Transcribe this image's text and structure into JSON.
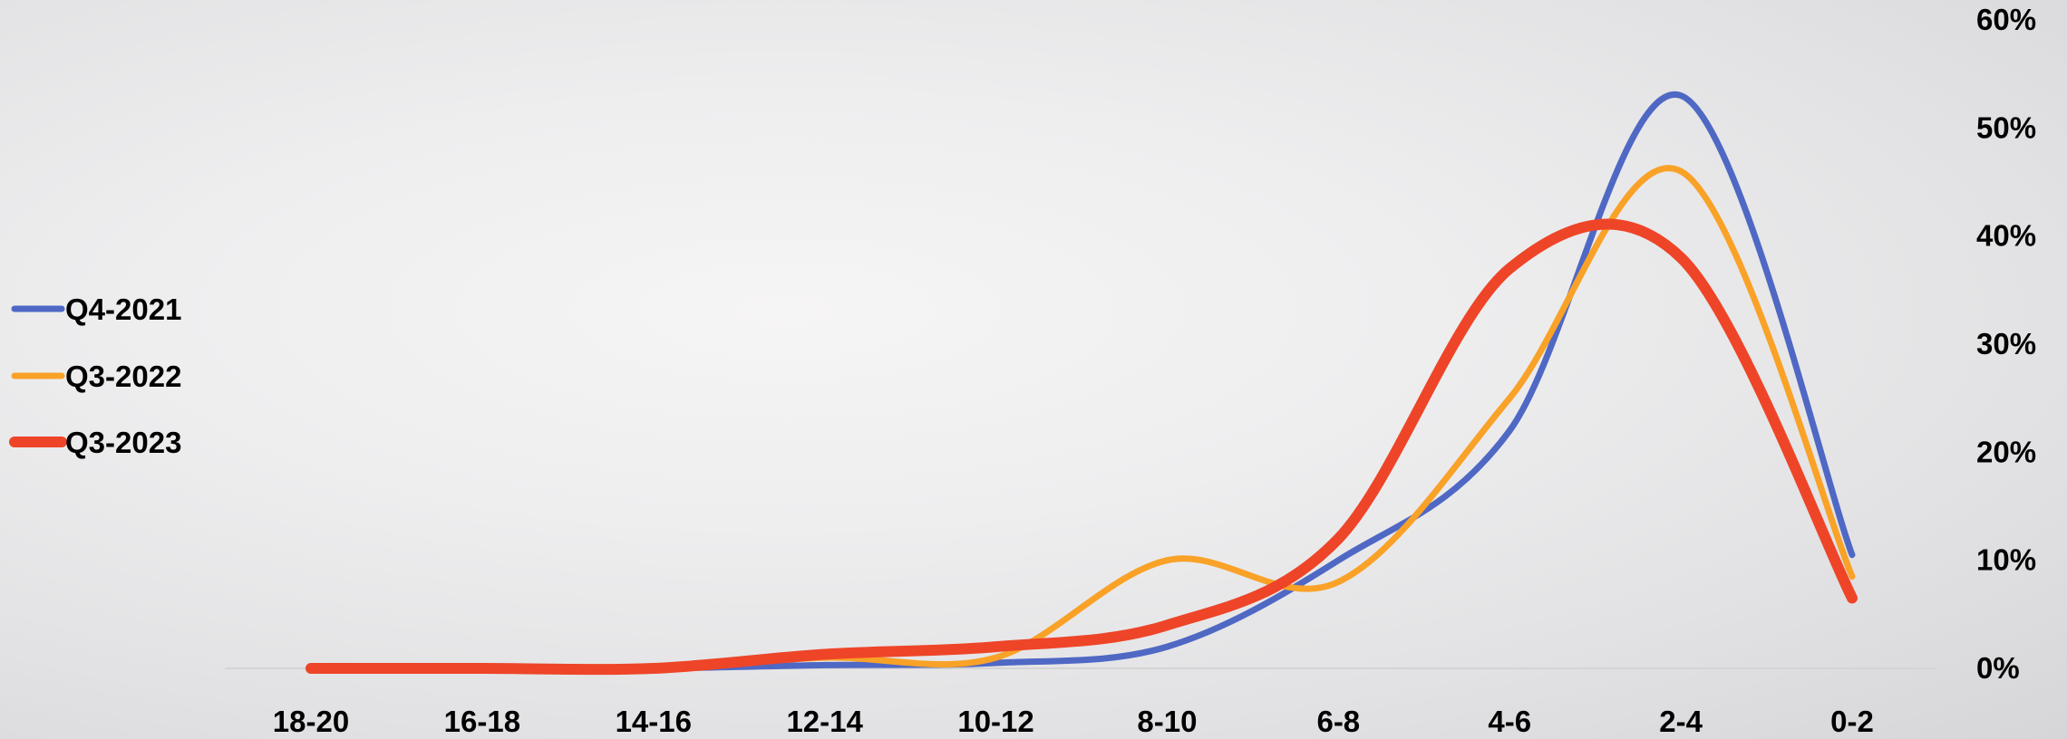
{
  "chart_data": {
    "type": "line",
    "categories": [
      "18-20",
      "16-18",
      "14-16",
      "12-14",
      "10-12",
      "8-10",
      "6-8",
      "4-6",
      "2-4",
      "0-2"
    ],
    "series": [
      {
        "name": "Q4-2021",
        "color": "#4f68c4",
        "values": [
          0,
          0,
          0,
          0.3,
          0.5,
          2,
          10,
          22,
          53,
          10.5
        ]
      },
      {
        "name": "Q3-2022",
        "color": "#f9a227",
        "values": [
          0,
          0,
          0,
          1,
          1,
          10,
          8,
          25,
          46,
          8.5
        ]
      },
      {
        "name": "Q3-2023",
        "color": "#ee4528",
        "values": [
          0,
          0,
          0,
          1.3,
          2,
          4,
          12,
          37,
          38,
          6.5
        ]
      }
    ],
    "y_ticks": [
      "0%",
      "10%",
      "20%",
      "30%",
      "40%",
      "50%",
      "60%"
    ],
    "ylim": [
      0,
      60
    ],
    "y_axis_position": "right",
    "legend_position": "left",
    "grid": false
  }
}
